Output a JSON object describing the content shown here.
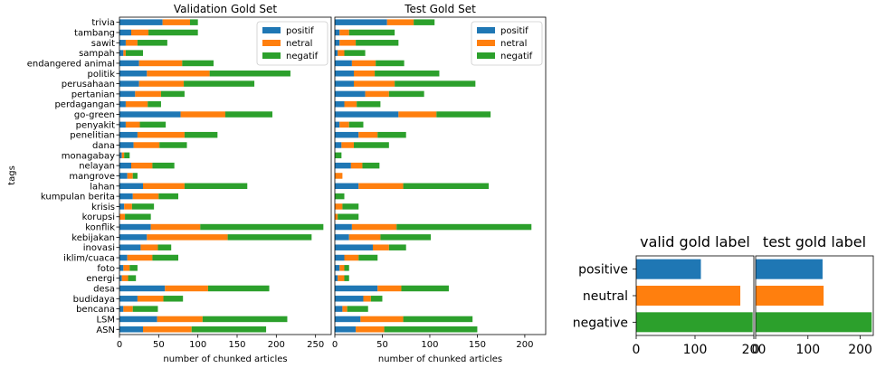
{
  "colors": {
    "positif": "#1f77b4",
    "netral": "#ff7f0e",
    "negatif": "#2ca02c"
  },
  "chart_data": [
    {
      "type": "bar",
      "orientation": "horizontal",
      "stacked": true,
      "title": "Validation Gold Set",
      "xlabel": "number of chunked articles",
      "ylabel": "tags",
      "xlim": [
        0,
        270
      ],
      "xticks": [
        0,
        50,
        100,
        150,
        200,
        250
      ],
      "legend_position": "upper right",
      "categories": [
        "trivia",
        "tambang",
        "sawit",
        "sampah",
        "endangered animal",
        "politik",
        "perusahaan",
        "pertanian",
        "perdagangan",
        "go-green",
        "penyakit",
        "penelitian",
        "dana",
        "monagabay",
        "nelayan",
        "mangrove",
        "lahan",
        "kumpulan berita",
        "krisis",
        "korupsi",
        "konflik",
        "kebijakan",
        "inovasi",
        "iklim/cuaca",
        "foto",
        "energi",
        "desa",
        "budidaya",
        "bencana",
        "LSM",
        "ASN"
      ],
      "series": [
        {
          "name": "positif",
          "values": [
            55,
            15,
            8,
            5,
            25,
            35,
            25,
            20,
            8,
            78,
            8,
            23,
            18,
            3,
            15,
            10,
            30,
            17,
            6,
            0,
            40,
            35,
            27,
            10,
            5,
            3,
            58,
            23,
            5,
            48,
            30
          ]
        },
        {
          "name": "netral",
          "values": [
            35,
            22,
            15,
            3,
            55,
            80,
            57,
            33,
            28,
            57,
            18,
            60,
            33,
            3,
            27,
            7,
            53,
            33,
            10,
            7,
            63,
            103,
            22,
            32,
            8,
            8,
            55,
            33,
            12,
            58,
            62
          ]
        },
        {
          "name": "negatif",
          "values": [
            10,
            63,
            38,
            22,
            40,
            103,
            90,
            30,
            17,
            60,
            33,
            42,
            35,
            7,
            28,
            6,
            80,
            25,
            28,
            33,
            157,
            107,
            17,
            33,
            10,
            10,
            78,
            25,
            32,
            108,
            95
          ]
        }
      ]
    },
    {
      "type": "bar",
      "orientation": "horizontal",
      "stacked": true,
      "title": "Test Gold Set",
      "xlabel": "number of chunked articles",
      "xlim": [
        0,
        222
      ],
      "xticks": [
        0,
        50,
        100,
        150,
        200
      ],
      "legend_position": "upper right",
      "categories": [
        "trivia",
        "tambang",
        "sawit",
        "sampah",
        "endangered animal",
        "politik",
        "perusahaan",
        "pertanian",
        "perdagangan",
        "go-green",
        "penyakit",
        "penelitian",
        "dana",
        "monagabay",
        "nelayan",
        "mangrove",
        "lahan",
        "kumpulan berita",
        "krisis",
        "korupsi",
        "konflik",
        "kebijakan",
        "inovasi",
        "iklim/cuaca",
        "foto",
        "energi",
        "desa",
        "budidaya",
        "bencana",
        "LSM",
        "ASN"
      ],
      "series": [
        {
          "name": "positif",
          "values": [
            55,
            5,
            5,
            3,
            18,
            20,
            20,
            32,
            10,
            67,
            5,
            25,
            7,
            0,
            17,
            0,
            25,
            0,
            0,
            0,
            18,
            15,
            40,
            10,
            5,
            3,
            45,
            30,
            8,
            27,
            22
          ]
        },
        {
          "name": "netral",
          "values": [
            28,
            10,
            17,
            7,
            25,
            22,
            43,
            25,
            13,
            40,
            10,
            20,
            13,
            0,
            12,
            8,
            47,
            0,
            8,
            3,
            47,
            33,
            17,
            15,
            5,
            7,
            25,
            8,
            5,
            45,
            30
          ]
        },
        {
          "name": "negatif",
          "values": [
            22,
            48,
            45,
            22,
            30,
            68,
            85,
            37,
            25,
            57,
            15,
            30,
            37,
            7,
            18,
            0,
            90,
            10,
            17,
            22,
            142,
            53,
            18,
            20,
            5,
            5,
            50,
            12,
            22,
            73,
            98
          ]
        }
      ]
    },
    {
      "type": "bar",
      "orientation": "horizontal",
      "title": "valid gold label",
      "xlim": [
        0,
        200
      ],
      "xticks": [
        0,
        100,
        200
      ],
      "categories": [
        "positive",
        "neutral",
        "negative"
      ],
      "values": [
        110,
        177,
        198
      ]
    },
    {
      "type": "bar",
      "orientation": "horizontal",
      "title": "test gold label",
      "xlim": [
        0,
        225
      ],
      "xticks": [
        0,
        100,
        200
      ],
      "categories": [
        "positive",
        "neutral",
        "negative"
      ],
      "values": [
        128,
        130,
        222
      ]
    }
  ]
}
